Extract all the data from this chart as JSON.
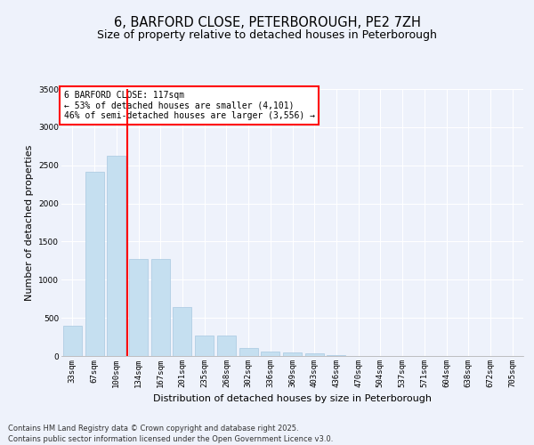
{
  "title_line1": "6, BARFORD CLOSE, PETERBOROUGH, PE2 7ZH",
  "title_line2": "Size of property relative to detached houses in Peterborough",
  "xlabel": "Distribution of detached houses by size in Peterborough",
  "ylabel": "Number of detached properties",
  "categories": [
    "33sqm",
    "67sqm",
    "100sqm",
    "134sqm",
    "167sqm",
    "201sqm",
    "235sqm",
    "268sqm",
    "302sqm",
    "336sqm",
    "369sqm",
    "403sqm",
    "436sqm",
    "470sqm",
    "504sqm",
    "537sqm",
    "571sqm",
    "604sqm",
    "638sqm",
    "672sqm",
    "705sqm"
  ],
  "values": [
    400,
    2420,
    2620,
    1270,
    1270,
    640,
    270,
    270,
    110,
    55,
    50,
    30,
    15,
    5,
    2,
    1,
    0,
    0,
    0,
    0,
    0
  ],
  "bar_color": "#c5dff0",
  "bar_edge_color": "#a8c8e0",
  "ylim": [
    0,
    3500
  ],
  "yticks": [
    0,
    500,
    1000,
    1500,
    2000,
    2500,
    3000,
    3500
  ],
  "property_bin_index": 2,
  "annotation_title": "6 BARFORD CLOSE: 117sqm",
  "annotation_line2": "← 53% of detached houses are smaller (4,101)",
  "annotation_line3": "46% of semi-detached houses are larger (3,556) →",
  "footnote_line1": "Contains HM Land Registry data © Crown copyright and database right 2025.",
  "footnote_line2": "Contains public sector information licensed under the Open Government Licence v3.0.",
  "background_color": "#eef2fb",
  "plot_bg_color": "#eef2fb",
  "grid_color": "#ffffff",
  "title_fontsize": 10.5,
  "subtitle_fontsize": 9,
  "axis_label_fontsize": 8,
  "tick_fontsize": 6.5,
  "annotation_fontsize": 7,
  "footnote_fontsize": 6
}
